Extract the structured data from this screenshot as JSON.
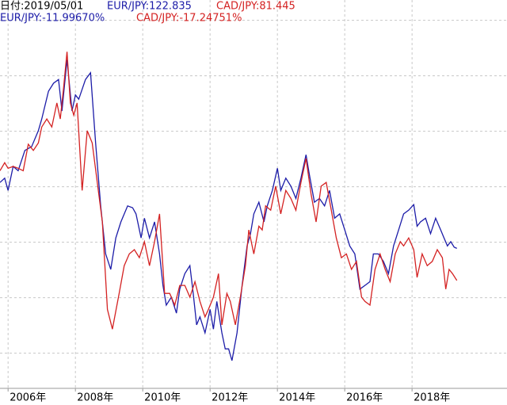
{
  "header": {
    "date": "日付:2019/05/01",
    "eur_price": "EUR/JPY:122.835",
    "cad_price": "CAD/JPY:81.445"
  },
  "chart_data": {
    "type": "line",
    "xlim": [
      2005.76,
      2020.82
    ],
    "ylim": [
      -34.7,
      28.3
    ],
    "xticks": [
      {
        "value": 2006,
        "label": "2006年"
      },
      {
        "value": 2008,
        "label": "2008年"
      },
      {
        "value": 2010,
        "label": "2010年"
      },
      {
        "value": 2012,
        "label": "2012年"
      },
      {
        "value": 2014,
        "label": "2014年"
      },
      {
        "value": 2016,
        "label": "2016年"
      },
      {
        "value": 2018,
        "label": "2018年"
      }
    ],
    "ygrid": [
      25,
      16,
      7,
      -2,
      -11,
      -20,
      -29
    ],
    "grid": true,
    "series": [
      {
        "name": "EUR/JPY:-11.99670%",
        "color": "#1c1ca8",
        "x": [
          2005.76,
          2005.9,
          2006.0,
          2006.15,
          2006.3,
          2006.5,
          2006.7,
          2006.9,
          2007.0,
          2007.2,
          2007.35,
          2007.5,
          2007.6,
          2007.75,
          2007.9,
          2008.0,
          2008.1,
          2008.3,
          2008.45,
          2008.6,
          2008.75,
          2008.9,
          2009.05,
          2009.2,
          2009.35,
          2009.55,
          2009.7,
          2009.8,
          2009.95,
          2010.05,
          2010.2,
          2010.35,
          2010.5,
          2010.6,
          2010.7,
          2010.85,
          2011.0,
          2011.1,
          2011.25,
          2011.4,
          2011.5,
          2011.6,
          2011.7,
          2011.85,
          2012.0,
          2012.1,
          2012.2,
          2012.35,
          2012.45,
          2012.55,
          2012.65,
          2012.8,
          2012.95,
          2013.1,
          2013.2,
          2013.3,
          2013.45,
          2013.6,
          2013.7,
          2013.85,
          2014.0,
          2014.1,
          2014.25,
          2014.4,
          2014.55,
          2014.7,
          2014.85,
          2014.95,
          2015.1,
          2015.25,
          2015.4,
          2015.55,
          2015.7,
          2015.85,
          2016.0,
          2016.15,
          2016.3,
          2016.45,
          2016.6,
          2016.75,
          2016.85,
          2017.0,
          2017.15,
          2017.3,
          2017.45,
          2017.6,
          2017.75,
          2017.9,
          2018.05,
          2018.15,
          2018.25,
          2018.4,
          2018.55,
          2018.7,
          2018.85,
          2018.95,
          2019.05,
          2019.15,
          2019.25,
          2019.33
        ],
        "values": [
          -1.3,
          -0.6,
          -2.6,
          1.3,
          0.6,
          3.9,
          4.5,
          7.1,
          9.0,
          13.5,
          14.8,
          15.4,
          10.3,
          18.6,
          10.3,
          12.9,
          12.2,
          15.4,
          16.5,
          5.1,
          -5.1,
          -12.9,
          -15.4,
          -10.3,
          -7.7,
          -5.1,
          -5.4,
          -6.4,
          -10.3,
          -7.1,
          -10.3,
          -7.7,
          -12.9,
          -18.0,
          -21.2,
          -19.9,
          -22.5,
          -18.6,
          -16.1,
          -14.8,
          -19.3,
          -24.4,
          -23.1,
          -25.7,
          -21.9,
          -25.1,
          -20.6,
          -25.7,
          -28.3,
          -28.3,
          -30.2,
          -25.7,
          -18.0,
          -11.6,
          -9.6,
          -6.4,
          -4.5,
          -7.7,
          -5.1,
          -2.6,
          1.0,
          -2.6,
          -0.6,
          -1.9,
          -3.9,
          -0.6,
          3.2,
          0.0,
          -4.5,
          -3.9,
          -5.1,
          -2.6,
          -7.1,
          -6.4,
          -9.0,
          -11.6,
          -12.9,
          -18.6,
          -18.0,
          -17.4,
          -12.9,
          -12.9,
          -14.1,
          -16.1,
          -11.6,
          -9.0,
          -6.4,
          -5.8,
          -4.9,
          -8.4,
          -7.7,
          -7.1,
          -9.6,
          -7.1,
          -9.0,
          -10.3,
          -11.6,
          -10.9,
          -11.8,
          -12.0
        ]
      },
      {
        "name": "CAD/JPY:-17.24751%",
        "color": "#d42222",
        "x": [
          2005.76,
          2005.9,
          2006.0,
          2006.15,
          2006.3,
          2006.45,
          2006.6,
          2006.75,
          2006.9,
          2007.0,
          2007.15,
          2007.3,
          2007.45,
          2007.55,
          2007.65,
          2007.75,
          2007.85,
          2007.95,
          2008.05,
          2008.2,
          2008.35,
          2008.5,
          2008.65,
          2008.8,
          2008.95,
          2009.1,
          2009.3,
          2009.45,
          2009.6,
          2009.75,
          2009.9,
          2010.05,
          2010.2,
          2010.35,
          2010.5,
          2010.65,
          2010.8,
          2010.95,
          2011.1,
          2011.25,
          2011.4,
          2011.55,
          2011.7,
          2011.85,
          2011.95,
          2012.1,
          2012.25,
          2012.35,
          2012.5,
          2012.6,
          2012.75,
          2012.9,
          2013.05,
          2013.15,
          2013.3,
          2013.45,
          2013.55,
          2013.65,
          2013.8,
          2013.95,
          2014.1,
          2014.25,
          2014.4,
          2014.55,
          2014.7,
          2014.85,
          2015.0,
          2015.15,
          2015.3,
          2015.45,
          2015.6,
          2015.75,
          2015.9,
          2016.05,
          2016.2,
          2016.35,
          2016.5,
          2016.6,
          2016.75,
          2016.9,
          2017.05,
          2017.2,
          2017.35,
          2017.5,
          2017.65,
          2017.75,
          2017.9,
          2018.05,
          2018.15,
          2018.3,
          2018.45,
          2018.6,
          2018.75,
          2018.9,
          2019.0,
          2019.1,
          2019.2,
          2019.33
        ],
        "values": [
          0.6,
          1.9,
          1.0,
          1.3,
          1.0,
          0.6,
          4.9,
          3.9,
          5.1,
          7.7,
          9.0,
          7.7,
          11.6,
          9.0,
          14.1,
          19.9,
          11.6,
          9.6,
          11.6,
          -2.6,
          7.1,
          5.1,
          -1.3,
          -7.7,
          -21.9,
          -25.1,
          -19.3,
          -14.8,
          -12.9,
          -12.2,
          -13.5,
          -10.9,
          -14.8,
          -10.9,
          -6.4,
          -19.3,
          -19.3,
          -21.2,
          -18.0,
          -18.0,
          -19.9,
          -17.4,
          -20.6,
          -23.1,
          -21.9,
          -19.9,
          -16.1,
          -24.4,
          -19.3,
          -20.6,
          -24.4,
          -19.9,
          -14.8,
          -9.0,
          -12.9,
          -8.4,
          -9.0,
          -5.1,
          -5.8,
          -1.9,
          -6.4,
          -2.6,
          -3.9,
          -5.8,
          -1.3,
          2.6,
          -3.2,
          -7.7,
          -1.9,
          -1.3,
          -5.8,
          -10.3,
          -13.5,
          -12.9,
          -15.4,
          -14.1,
          -19.9,
          -20.6,
          -21.2,
          -15.4,
          -12.9,
          -15.4,
          -17.4,
          -12.9,
          -10.9,
          -11.6,
          -10.3,
          -12.2,
          -16.7,
          -12.9,
          -14.8,
          -14.1,
          -12.2,
          -13.5,
          -18.6,
          -15.4,
          -16.1,
          -17.2
        ]
      }
    ]
  }
}
